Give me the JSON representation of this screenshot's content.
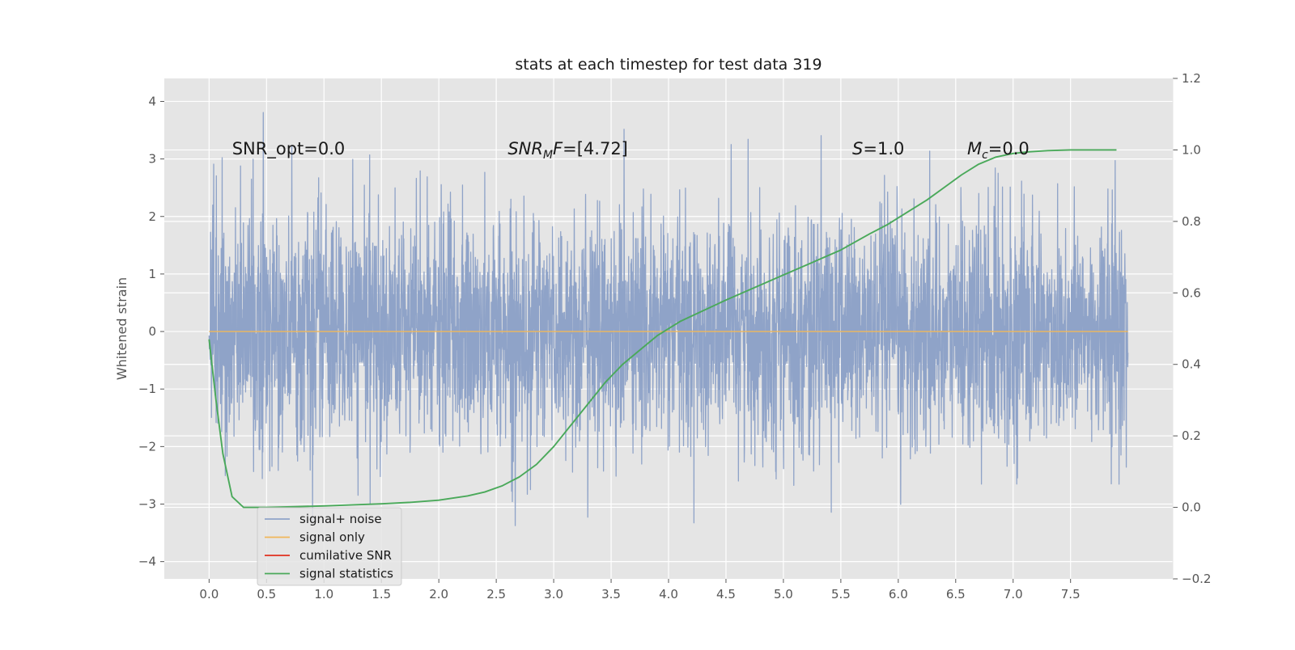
{
  "chart_data": {
    "type": "line",
    "title": "stats at each timestep for test data 319",
    "xlabel": "",
    "ylabel": "Whitened strain",
    "y2label": "",
    "xlim": [
      -0.39,
      8.39
    ],
    "ylim": [
      -4.3,
      4.4
    ],
    "y2lim": [
      -0.2,
      1.2
    ],
    "x_ticks": [
      0.0,
      0.5,
      1.0,
      1.5,
      2.0,
      2.5,
      3.0,
      3.5,
      4.0,
      4.5,
      5.0,
      5.5,
      6.0,
      6.5,
      7.0,
      7.5
    ],
    "x_tick_labels": [
      "0.0",
      "0.5",
      "1.0",
      "1.5",
      "2.0",
      "2.5",
      "3.0",
      "3.5",
      "4.0",
      "4.5",
      "5.0",
      "5.5",
      "6.0",
      "6.5",
      "7.0",
      "7.5"
    ],
    "y_ticks": [
      4,
      3,
      2,
      1,
      0,
      -1,
      -2,
      -3,
      -4
    ],
    "y_tick_labels": [
      "4",
      "3",
      "2",
      "1",
      "0",
      "−1",
      "−2",
      "−3",
      "−4"
    ],
    "y2_ticks": [
      1.2,
      1.0,
      0.8,
      0.6,
      0.4,
      0.2,
      0.0,
      -0.2
    ],
    "y2_tick_labels": [
      "1.2",
      "1.0",
      "0.8",
      "0.6",
      "0.4",
      "0.2",
      "0.0",
      "−0.2"
    ],
    "grid": true,
    "legend_position": "lower-left",
    "background_color": "#e5e5e5",
    "series": [
      {
        "name": "signal+ noise",
        "color": "#8fa3c8",
        "axis": "left",
        "style": "noise",
        "x_range": [
          0.0,
          8.0
        ],
        "approx_std": 1.0,
        "approx_extent": [
          -3.9,
          4.0
        ]
      },
      {
        "name": "signal only",
        "color": "#f0b75a",
        "axis": "left",
        "x": [
          0.0,
          8.0
        ],
        "y": [
          0.0,
          0.0
        ]
      },
      {
        "name": "cumilative SNR",
        "color": "#e0301e",
        "axis": "right",
        "x": [],
        "y": []
      },
      {
        "name": "signal statistics",
        "color": "#4aa95a",
        "axis": "right",
        "x": [
          0.0,
          0.06,
          0.12,
          0.2,
          0.3,
          0.5,
          0.75,
          1.0,
          1.25,
          1.5,
          1.75,
          2.0,
          2.1,
          2.25,
          2.4,
          2.55,
          2.7,
          2.85,
          3.0,
          3.15,
          3.3,
          3.45,
          3.6,
          3.75,
          3.9,
          4.1,
          4.3,
          4.5,
          4.75,
          5.0,
          5.25,
          5.5,
          5.75,
          5.9,
          6.0,
          6.1,
          6.25,
          6.4,
          6.55,
          6.7,
          6.85,
          7.0,
          7.15,
          7.3,
          7.5,
          7.7,
          7.9
        ],
        "y": [
          0.47,
          0.3,
          0.15,
          0.03,
          0.0,
          0.0,
          0.002,
          0.004,
          0.007,
          0.01,
          0.014,
          0.02,
          0.025,
          0.032,
          0.043,
          0.06,
          0.085,
          0.12,
          0.17,
          0.23,
          0.29,
          0.35,
          0.4,
          0.44,
          0.48,
          0.52,
          0.55,
          0.58,
          0.615,
          0.65,
          0.685,
          0.72,
          0.765,
          0.79,
          0.81,
          0.83,
          0.86,
          0.895,
          0.93,
          0.96,
          0.98,
          0.99,
          0.995,
          0.998,
          1.0,
          1.0,
          1.0
        ]
      }
    ],
    "annotations": [
      {
        "text": "SNR_opt=0.0",
        "x": 0.2,
        "y": 3.15,
        "axis": "left",
        "style": "plain"
      },
      {
        "text": "SNR",
        "sub": "M",
        "suffix": "F=[4.72]",
        "x": 2.6,
        "y": 3.15,
        "axis": "left",
        "style": "math"
      },
      {
        "text": "S",
        "suffix": "=1.0",
        "x": 5.6,
        "y": 3.15,
        "axis": "left",
        "style": "math"
      },
      {
        "text": "M",
        "sub": "c",
        "suffix": "=0.0",
        "x": 6.6,
        "y": 3.15,
        "axis": "left",
        "style": "math"
      }
    ]
  }
}
